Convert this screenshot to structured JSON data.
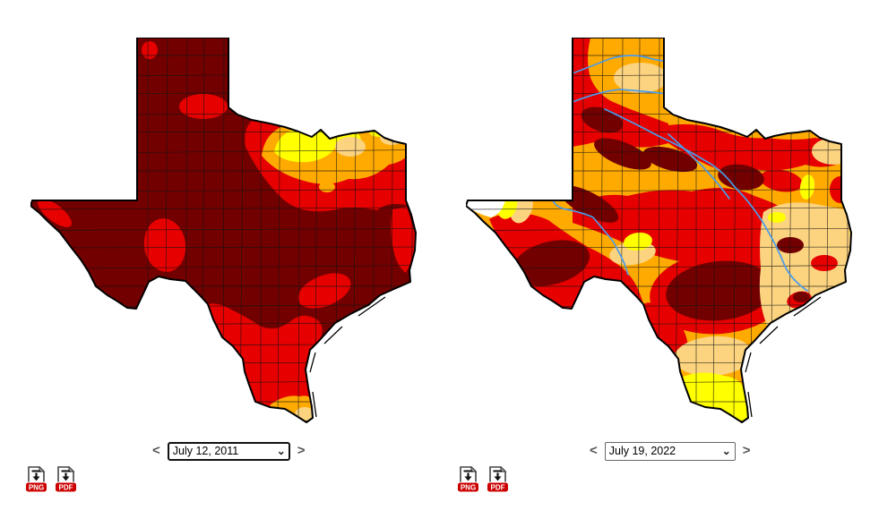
{
  "app": {
    "background": "#ffffff"
  },
  "left_panel": {
    "map_name": "texas-drought-map-2011",
    "date_value": "July 12, 2011",
    "png_label": "PNG",
    "pdf_label": "PDF"
  },
  "right_panel": {
    "map_name": "texas-drought-map-2022",
    "date_value": "July 19, 2022",
    "png_label": "PNG",
    "pdf_label": "PDF"
  },
  "icons": {
    "prev": "<",
    "next": ">",
    "dropdown_chevron": "⌄"
  },
  "colors": {
    "none": "#FFFFFF",
    "d0": "#FFFF00",
    "d1": "#FCD37F",
    "d2": "#FFAA00",
    "d3": "#E60000",
    "d4": "#730000",
    "river": "#4A9BE8",
    "outline": "#000000",
    "county_line": "#141414",
    "download_badge": "#CC0000"
  }
}
